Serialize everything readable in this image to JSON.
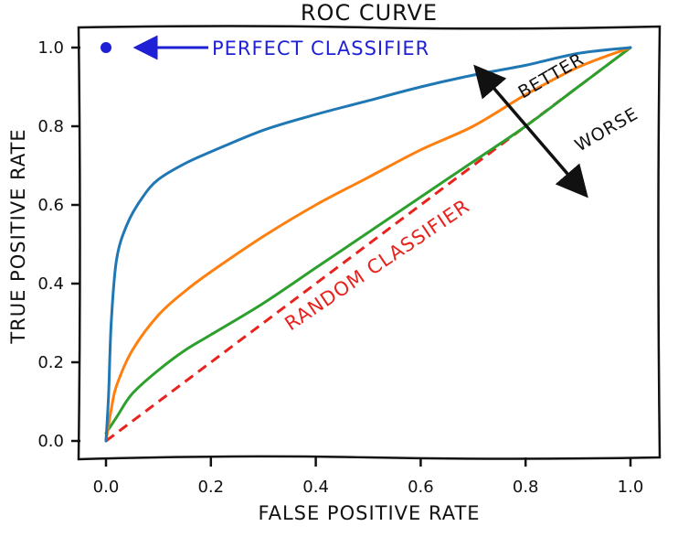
{
  "chart_data": {
    "type": "line",
    "title": "ROC CURVE",
    "xlabel": "FALSE POSITIVE RATE",
    "ylabel": "TRUE POSITIVE RATE",
    "xlim": [
      -0.05,
      1.05
    ],
    "ylim": [
      -0.05,
      1.05
    ],
    "xticks": [
      "0.0",
      "0.2",
      "0.4",
      "0.6",
      "0.8",
      "1.0"
    ],
    "yticks": [
      "0.0",
      "0.2",
      "0.4",
      "0.6",
      "0.8",
      "1.0"
    ],
    "grid": false,
    "series": [
      {
        "color": "#1f77b4",
        "x": [
          0.0,
          0.005,
          0.01,
          0.02,
          0.04,
          0.07,
          0.1,
          0.15,
          0.2,
          0.3,
          0.4,
          0.5,
          0.6,
          0.7,
          0.8,
          0.9,
          1.0
        ],
        "y": [
          0.0,
          0.12,
          0.3,
          0.46,
          0.55,
          0.62,
          0.665,
          0.705,
          0.735,
          0.79,
          0.83,
          0.865,
          0.9,
          0.93,
          0.955,
          0.985,
          1.0
        ]
      },
      {
        "color": "#ff7f0e",
        "x": [
          0.0,
          0.01,
          0.02,
          0.05,
          0.1,
          0.15,
          0.2,
          0.3,
          0.4,
          0.5,
          0.6,
          0.7,
          0.8,
          0.9,
          1.0
        ],
        "y": [
          0.0,
          0.08,
          0.14,
          0.23,
          0.32,
          0.38,
          0.43,
          0.52,
          0.6,
          0.67,
          0.74,
          0.8,
          0.88,
          0.95,
          1.0
        ]
      },
      {
        "color": "#2ca02c",
        "x": [
          0.0,
          0.02,
          0.05,
          0.1,
          0.15,
          0.2,
          0.3,
          0.4,
          0.5,
          0.6,
          0.7,
          0.8,
          0.9,
          1.0
        ],
        "y": [
          0.02,
          0.06,
          0.12,
          0.18,
          0.23,
          0.27,
          0.35,
          0.44,
          0.53,
          0.62,
          0.71,
          0.8,
          0.9,
          1.0
        ]
      },
      {
        "name": "RANDOM CLASSIFIER",
        "color": "#e8231e",
        "dashed": true,
        "x": [
          0.0,
          1.0
        ],
        "y": [
          0.0,
          1.0
        ]
      }
    ],
    "points": [
      {
        "x": 0.0,
        "y": 1.0,
        "color": "#1f1fd6"
      }
    ],
    "annotations": {
      "perfect_classifier": "PERFECT CLASSIFIER",
      "random_classifier": "RANDOM CLASSIFIER",
      "better": "BETTER",
      "worse": "WORSE"
    },
    "annotation_colors": {
      "perfect": "#1f1fd6",
      "random": "#e8231e",
      "arrow": "#111111"
    }
  }
}
